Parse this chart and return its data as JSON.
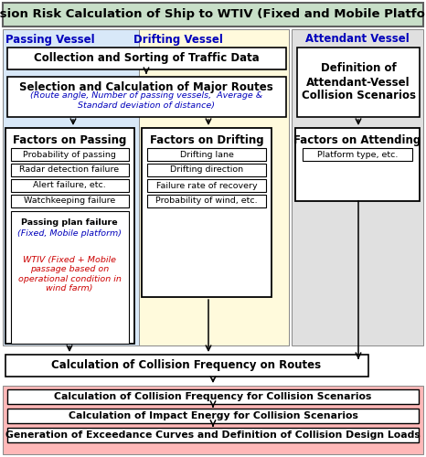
{
  "title": "Collision Risk Calculation of Ship to WTIV (Fixed and Mobile Platforms)",
  "title_bg": "#c8dfc8",
  "passing_label": "Passing Vessel",
  "drifting_label": "Drifting Vessel",
  "attendant_label": "Attendant Vessel",
  "label_color": "#0000bb",
  "passing_bg": "#d8e8f8",
  "drifting_bg": "#fffadc",
  "attendant_bg": "#e0e0e0",
  "box_traffic": "Collection and Sorting of Traffic Data",
  "box_routes_main": "Selection and Calculation of Major Routes",
  "box_routes_sub": "(Route angle, Number of passing vessels,  Average &\nStandard deviation of distance)",
  "box_routes_sub_color": "#0000bb",
  "attendant_def_main": "Definition of\nAttendant-Vessel\nCollision Scenarios",
  "box_passing_title": "Factors on Passing",
  "box_drifting_title": "Factors on Drifting",
  "box_attending_title": "Factors on Attending",
  "passing_items": [
    "Probability of passing",
    "Radar detection failure",
    "Alert failure, etc.",
    "Watchkeeping failure"
  ],
  "passing_last_bold": "Passing plan failure",
  "passing_last_sub1": "(Fixed, Mobile platform)",
  "passing_last_sub1_color": "#0000bb",
  "passing_last_sub2": "WTIV (Fixed + Mobile\npassage based on\noperational condition in\nwind farm)",
  "passing_last_sub2_color": "#cc0000",
  "drifting_items": [
    "Drifting lane",
    "Drifting direction",
    "Failure rate of recovery",
    "Probability of wind, etc."
  ],
  "attending_item": "Platform type, etc.",
  "box_freq_routes": "Calculation of Collision Frequency on Routes",
  "bottom_bg": "#ffb8b8",
  "bottom_boxes": [
    "Calculation of Collision Frequency for Collision Scenarios",
    "Calculation of Impact Energy for Collision Scenarios",
    "Generation of Exceedance Curves and Definition of Collision Design Loads"
  ]
}
